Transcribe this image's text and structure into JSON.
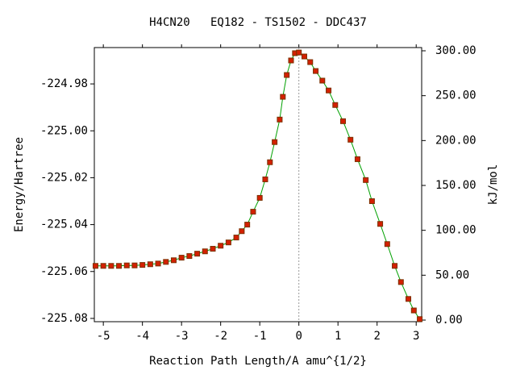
{
  "chart_data": {
    "type": "line",
    "title": "H4CN20   EQ182 - TS1502 - DDC437",
    "x_label": "Reaction Path Length/A amu^{1/2}",
    "y_label": "Energy/Hartree",
    "y2_label": "kJ/mol",
    "xlim": [
      -5.23,
      3.14
    ],
    "xticks": [
      -5,
      -4,
      -3,
      -2,
      -1,
      0,
      1,
      2,
      3
    ],
    "ylim": [
      -225.0814,
      -224.9645
    ],
    "yticks": [
      -224.98,
      {
        "value": -225.0,
        "label": "-225.00"
      },
      -225.02,
      -225.04,
      -225.06,
      -225.08
    ],
    "y2lim": [
      -1.8,
      303.6
    ],
    "y2ticks": [
      {
        "value": 0,
        "label": "0.00"
      },
      {
        "value": 50,
        "label": "50.00"
      },
      {
        "value": 100,
        "label": "100.00"
      },
      {
        "value": 150,
        "label": "150.00"
      },
      {
        "value": 200,
        "label": "200.00"
      },
      {
        "value": 250,
        "label": "250.00"
      },
      {
        "value": 300,
        "label": "300.00"
      }
    ],
    "ts_line_x": 0,
    "line_color": "#00a000",
    "marker_color": "#d42000",
    "marker_edge_color": "#7a3000",
    "x": [
      -5.2,
      -5.0,
      -4.8,
      -4.6,
      -4.4,
      -4.2,
      -4.0,
      -3.8,
      -3.6,
      -3.4,
      -3.2,
      -3.0,
      -2.8,
      -2.6,
      -2.4,
      -2.2,
      -2.0,
      -1.8,
      -1.6,
      -1.46,
      -1.32,
      -1.17,
      -1.0,
      -0.86,
      -0.74,
      -0.62,
      -0.49,
      -0.41,
      -0.31,
      -0.2,
      -0.1,
      0,
      0.14,
      0.29,
      0.43,
      0.6,
      0.76,
      0.93,
      1.13,
      1.32,
      1.5,
      1.71,
      1.87,
      2.08,
      2.26,
      2.45,
      2.61,
      2.8,
      2.94,
      3.09
    ],
    "values": [
      -225.0576,
      -225.0576,
      -225.0576,
      -225.0576,
      -225.0574,
      -225.0574,
      -225.0572,
      -225.0569,
      -225.0566,
      -225.0559,
      -225.0552,
      -225.0541,
      -225.0534,
      -225.0524,
      -225.0514,
      -225.0503,
      -225.049,
      -225.0476,
      -225.0455,
      -225.0428,
      -225.04,
      -225.0345,
      -225.0286,
      -225.0207,
      -225.0134,
      -225.0048,
      -224.9952,
      -224.9855,
      -224.9762,
      -224.97,
      -224.9669,
      -224.9666,
      -224.9683,
      -224.9707,
      -224.9745,
      -224.9786,
      -224.9828,
      -224.989,
      -224.9959,
      -225.0038,
      -225.0121,
      -225.021,
      -225.03,
      -225.0397,
      -225.0483,
      -225.0576,
      -225.0645,
      -225.0717,
      -225.0766,
      -225.0803
    ]
  }
}
